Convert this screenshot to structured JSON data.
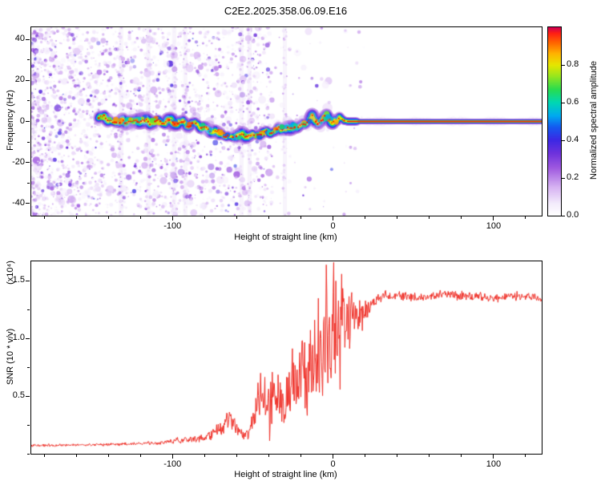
{
  "title": "C2E2.2025.358.06.09.E16",
  "chart_data": [
    {
      "type": "heatmap",
      "panel": "doppler-spectrogram",
      "xlabel": "Height of straight line (km)",
      "ylabel": "Frequency (Hz)",
      "xlim": [
        -188,
        130
      ],
      "ylim": [
        -46,
        46
      ],
      "xtick_values": [
        -100,
        0,
        100
      ],
      "xtick_labels": [
        "-100",
        "0",
        "100"
      ],
      "ytick_values": [
        -40,
        -20,
        0,
        20,
        40
      ],
      "ytick_labels": [
        "-40",
        "-20",
        "0",
        "20",
        "40"
      ],
      "colorbar": {
        "label": "Normalized spectral amplitude",
        "range": [
          0,
          1
        ],
        "tick_values": [
          0,
          0.2,
          0.4,
          0.6,
          0.8
        ],
        "tick_labels": [
          "0.0",
          "0.2",
          "0.4",
          "0.6",
          "0.8"
        ]
      },
      "colormap_stops": [
        [
          0,
          255,
          255,
          255
        ],
        [
          0.06,
          244,
          237,
          252
        ],
        [
          0.15,
          214,
          178,
          242
        ],
        [
          0.25,
          160,
          90,
          224
        ],
        [
          0.33,
          110,
          50,
          220
        ],
        [
          0.4,
          60,
          40,
          228
        ],
        [
          0.47,
          20,
          90,
          240
        ],
        [
          0.53,
          0,
          170,
          240
        ],
        [
          0.6,
          0,
          215,
          180
        ],
        [
          0.67,
          40,
          220,
          80
        ],
        [
          0.74,
          150,
          230,
          30
        ],
        [
          0.8,
          230,
          230,
          0
        ],
        [
          0.86,
          255,
          180,
          0
        ],
        [
          0.92,
          255,
          100,
          0
        ],
        [
          0.97,
          255,
          30,
          20
        ],
        [
          1,
          208,
          0,
          80
        ]
      ],
      "band": {
        "start": -146,
        "straight_from": 9,
        "straight_freq": 0,
        "centerline": [
          [
            -146,
            0.5
          ],
          [
            -142,
            1.8
          ],
          [
            -138,
            -0.5
          ],
          [
            -134,
            1.2
          ],
          [
            -130,
            -0.8
          ],
          [
            -126,
            1
          ],
          [
            -122,
            0.2
          ],
          [
            -118,
            1.5
          ],
          [
            -114,
            -0.5
          ],
          [
            -110,
            0.8
          ],
          [
            -106,
            -0.3
          ],
          [
            -102,
            0.5
          ],
          [
            -98,
            -0.8
          ],
          [
            -94,
            -0.3
          ],
          [
            -90,
            -1.5
          ],
          [
            -86,
            -1
          ],
          [
            -82,
            -2.5
          ],
          [
            -78,
            -3.5
          ],
          [
            -74,
            -4.5
          ],
          [
            -70,
            -5.5
          ],
          [
            -66,
            -6.5
          ],
          [
            -62,
            -7.5
          ],
          [
            -58,
            -7.8
          ],
          [
            -54,
            -7
          ],
          [
            -50,
            -6.2
          ],
          [
            -46,
            -6.8
          ],
          [
            -42,
            -5.5
          ],
          [
            -38,
            -4.5
          ],
          [
            -34,
            -3.8
          ],
          [
            -30,
            -3
          ],
          [
            -26,
            -2.5
          ],
          [
            -22,
            -2.8
          ],
          [
            -18,
            -1.5
          ],
          [
            -15,
            0.5
          ],
          [
            -13,
            2.5
          ],
          [
            -11,
            0.5
          ],
          [
            -9,
            -0.5
          ],
          [
            -7,
            0.5
          ],
          [
            -5,
            2
          ],
          [
            -3.5,
            3.5
          ],
          [
            -2,
            1
          ],
          [
            0,
            -0.5
          ],
          [
            2,
            0.5
          ],
          [
            4,
            2
          ],
          [
            6,
            0.8
          ],
          [
            8,
            0.2
          ],
          [
            10,
            0
          ],
          [
            130,
            0
          ]
        ]
      },
      "noise": {
        "seed": 42,
        "dot_count": 2600,
        "streak_heights": [
          -132,
          -115,
          -99,
          -92,
          -57,
          -52,
          -30
        ]
      }
    },
    {
      "type": "line",
      "panel": "snr-profile",
      "xlabel": "Height of straight line (km)",
      "ylabel": "SNR (10 * v/v)",
      "ylabel_scale": "(x10⁴)",
      "xlim": [
        -188,
        130
      ],
      "ylim": [
        0,
        1.67
      ],
      "xtick_values": [
        -100,
        0,
        100
      ],
      "xtick_labels": [
        "-100",
        "0",
        "100"
      ],
      "ytick_values": [
        0.5,
        1,
        1.5
      ],
      "ytick_labels": [
        "0.5",
        "1.0",
        "1.5"
      ],
      "line_color": "#f03028",
      "envelope": [
        [
          -188,
          0.07,
          0.012
        ],
        [
          -160,
          0.075,
          0.012
        ],
        [
          -140,
          0.08,
          0.014
        ],
        [
          -120,
          0.09,
          0.016
        ],
        [
          -105,
          0.1,
          0.02
        ],
        [
          -95,
          0.11,
          0.025
        ],
        [
          -88,
          0.13,
          0.03
        ],
        [
          -80,
          0.14,
          0.04
        ],
        [
          -74,
          0.18,
          0.07
        ],
        [
          -68,
          0.26,
          0.1
        ],
        [
          -64,
          0.3,
          0.1
        ],
        [
          -60,
          0.22,
          0.07
        ],
        [
          -56,
          0.16,
          0.05
        ],
        [
          -52,
          0.18,
          0.07
        ],
        [
          -49,
          0.3,
          0.18
        ],
        [
          -46,
          0.45,
          0.28
        ],
        [
          -43,
          0.5,
          0.3
        ],
        [
          -40,
          0.42,
          0.28
        ],
        [
          -37,
          0.55,
          0.32
        ],
        [
          -34,
          0.5,
          0.3
        ],
        [
          -31,
          0.38,
          0.24
        ],
        [
          -28,
          0.55,
          0.32
        ],
        [
          -25,
          0.65,
          0.35
        ],
        [
          -22,
          0.6,
          0.38
        ],
        [
          -19,
          0.7,
          0.4
        ],
        [
          -16,
          0.65,
          0.42
        ],
        [
          -13,
          0.75,
          0.45
        ],
        [
          -10,
          0.8,
          0.5
        ],
        [
          -7,
          0.85,
          0.55
        ],
        [
          -4,
          0.95,
          0.58
        ],
        [
          -1,
          0.9,
          0.58
        ],
        [
          2,
          1,
          0.55
        ],
        [
          5,
          1.05,
          0.48
        ],
        [
          8,
          1.05,
          0.4
        ],
        [
          11,
          1.12,
          0.32
        ],
        [
          14,
          1.18,
          0.24
        ],
        [
          18,
          1.24,
          0.16
        ],
        [
          22,
          1.28,
          0.1
        ],
        [
          26,
          1.32,
          0.07
        ],
        [
          30,
          1.36,
          0.05
        ],
        [
          40,
          1.38,
          0.045
        ],
        [
          50,
          1.36,
          0.045
        ],
        [
          60,
          1.37,
          0.045
        ],
        [
          70,
          1.38,
          0.045
        ],
        [
          80,
          1.36,
          0.045
        ],
        [
          90,
          1.37,
          0.045
        ],
        [
          100,
          1.35,
          0.045
        ],
        [
          110,
          1.37,
          0.045
        ],
        [
          120,
          1.36,
          0.045
        ],
        [
          130,
          1.35,
          0.045
        ]
      ],
      "spikes": [
        [
          -9,
          1.35
        ],
        [
          -4.2,
          1.64
        ],
        [
          0.5,
          1.66
        ],
        [
          1.8,
          1.5
        ],
        [
          5.5,
          1.56
        ]
      ]
    }
  ]
}
